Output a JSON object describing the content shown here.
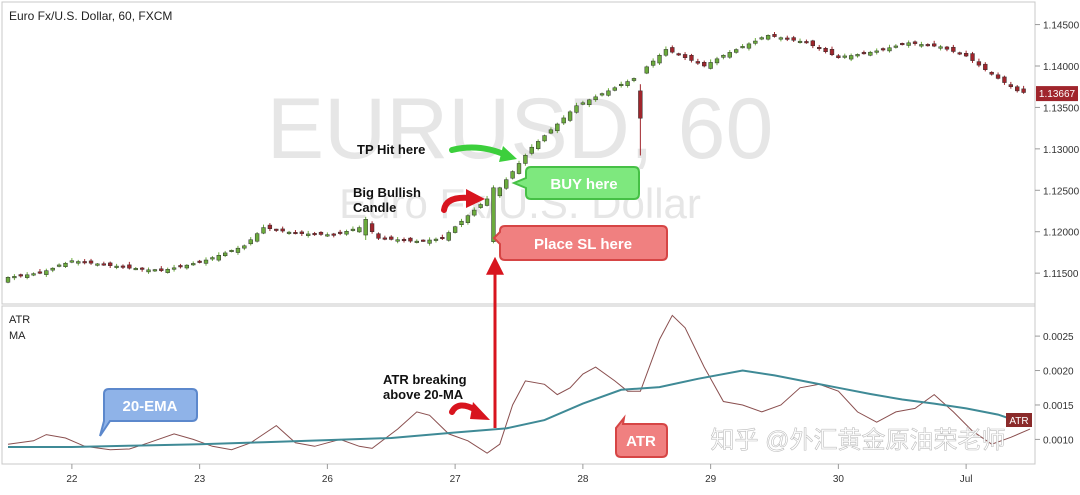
{
  "chart_data": [
    {
      "type": "candlestick",
      "title": "Euro Fx/U.S. Dollar, 60, FXCM",
      "watermark": {
        "line1": "EURUSD, 60",
        "line2": "Euro Fx/U.S. Dollar"
      },
      "ylim": [
        1.112,
        1.147
      ],
      "y_ticks": [
        "1.14500",
        "1.14000",
        "1.13500",
        "1.13000",
        "1.12500",
        "1.12000",
        "1.11500"
      ],
      "last_price": "1.13667",
      "last_price_value": 1.13667,
      "colors": {
        "bull": "#6bab3c",
        "bear": "#a0252c",
        "price_tag": "#a0252c",
        "watermark": "#e6e6e6"
      },
      "close_path": [
        [
          0,
          1.1145
        ],
        [
          5,
          1.115
        ],
        [
          10,
          1.1165
        ],
        [
          15,
          1.116
        ],
        [
          20,
          1.1155
        ],
        [
          24,
          1.1153
        ],
        [
          30,
          1.1163
        ],
        [
          37,
          1.1183
        ],
        [
          40,
          1.1205
        ],
        [
          45,
          1.1198
        ],
        [
          51,
          1.1196
        ],
        [
          55,
          1.1205
        ],
        [
          56,
          1.1208
        ],
        [
          58,
          1.1192
        ],
        [
          64,
          1.1188
        ],
        [
          68,
          1.1192
        ],
        [
          70,
          1.1206
        ],
        [
          77,
          1.1253
        ],
        [
          82,
          1.1302
        ],
        [
          86,
          1.133
        ],
        [
          89,
          1.1352
        ],
        [
          94,
          1.137
        ],
        [
          98,
          1.1385
        ],
        [
          103,
          1.142
        ],
        [
          109,
          1.14
        ],
        [
          112,
          1.1413
        ],
        [
          119,
          1.1437
        ],
        [
          125,
          1.1428
        ],
        [
          130,
          1.141
        ],
        [
          136,
          1.1418
        ],
        [
          141,
          1.1428
        ],
        [
          146,
          1.1423
        ],
        [
          150,
          1.1412
        ],
        [
          154,
          1.139
        ],
        [
          158,
          1.137
        ],
        [
          160,
          1.1366
        ]
      ],
      "event_candles": [
        {
          "index": 76,
          "open": 1.1188,
          "close": 1.1253,
          "high": 1.1256,
          "low": 1.1186
        },
        {
          "index": 99,
          "open": 1.137,
          "close": 1.1337,
          "high": 1.1378,
          "low": 1.1292
        },
        {
          "index": 56,
          "open": 1.1196,
          "close": 1.1215,
          "high": 1.1218,
          "low": 1.119
        }
      ],
      "annotations": [
        {
          "text": "TP Hit here",
          "type": "label",
          "arrow_color": "#3ccf3c"
        },
        {
          "text": "Big Bullish",
          "text2": "Candle",
          "type": "label",
          "arrow_color": "#d8141e"
        },
        {
          "text": "BUY here",
          "type": "callout",
          "fill": "#7ee87e",
          "stroke": "#46c046"
        },
        {
          "text": "Place SL here",
          "type": "callout",
          "fill": "#f08080",
          "stroke": "#d64545"
        }
      ]
    },
    {
      "type": "line",
      "panel_labels": [
        "ATR",
        "MA"
      ],
      "ylim": [
        0.00073,
        0.00285
      ],
      "y_ticks": [
        "0.0025",
        "0.0020",
        "0.0015",
        "0.0010"
      ],
      "x_ticks": [
        "22",
        "23",
        "26",
        "27",
        "28",
        "29",
        "30",
        "Jul"
      ],
      "x_tick_index": [
        10,
        30,
        50,
        70,
        90,
        110,
        130,
        150
      ],
      "n_points": 161,
      "series": [
        {
          "name": "ATR",
          "color": "#8a4f4f",
          "points": [
            [
              0,
              0.00093
            ],
            [
              4,
              0.00098
            ],
            [
              6,
              0.00107
            ],
            [
              9,
              0.00102
            ],
            [
              12,
              0.0009
            ],
            [
              16,
              0.00085
            ],
            [
              19,
              0.00086
            ],
            [
              22,
              0.00095
            ],
            [
              26,
              0.00108
            ],
            [
              29,
              0.001
            ],
            [
              32,
              0.0009
            ],
            [
              35,
              0.00085
            ],
            [
              38,
              0.00095
            ],
            [
              42,
              0.0012
            ],
            [
              45,
              0.00095
            ],
            [
              48,
              0.0009
            ],
            [
              52,
              0.001
            ],
            [
              55,
              0.0009
            ],
            [
              57,
              0.00087
            ],
            [
              61,
              0.00115
            ],
            [
              64,
              0.0014
            ],
            [
              66,
              0.00135
            ],
            [
              69,
              0.00108
            ],
            [
              72,
              0.00098
            ],
            [
              75,
              0.0008
            ],
            [
              77,
              0.00093
            ],
            [
              79,
              0.0015
            ],
            [
              81,
              0.00185
            ],
            [
              84,
              0.0018
            ],
            [
              86,
              0.00165
            ],
            [
              88,
              0.00175
            ],
            [
              90,
              0.00195
            ],
            [
              92,
              0.00205
            ],
            [
              95,
              0.00185
            ],
            [
              97,
              0.0017
            ],
            [
              99,
              0.0017
            ],
            [
              102,
              0.00245
            ],
            [
              104,
              0.0028
            ],
            [
              106,
              0.00262
            ],
            [
              109,
              0.00205
            ],
            [
              112,
              0.00155
            ],
            [
              115,
              0.0015
            ],
            [
              118,
              0.0014
            ],
            [
              121,
              0.0015
            ],
            [
              124,
              0.00175
            ],
            [
              127,
              0.0018
            ],
            [
              130,
              0.0017
            ],
            [
              133,
              0.0014
            ],
            [
              136,
              0.00125
            ],
            [
              139,
              0.0014
            ],
            [
              142,
              0.00145
            ],
            [
              145,
              0.00165
            ],
            [
              148,
              0.0014
            ],
            [
              151,
              0.00112
            ],
            [
              154,
              0.00093
            ],
            [
              157,
              0.00103
            ],
            [
              160,
              0.00115
            ]
          ]
        },
        {
          "name": "20-EMA",
          "color": "#3f8a96",
          "points": [
            [
              0,
              0.00089
            ],
            [
              10,
              0.00089
            ],
            [
              20,
              0.00091
            ],
            [
              30,
              0.00093
            ],
            [
              40,
              0.00096
            ],
            [
              50,
              0.00099
            ],
            [
              60,
              0.00102
            ],
            [
              70,
              0.0011
            ],
            [
              78,
              0.00116
            ],
            [
              84,
              0.00128
            ],
            [
              90,
              0.00152
            ],
            [
              96,
              0.00172
            ],
            [
              102,
              0.00176
            ],
            [
              108,
              0.00188
            ],
            [
              115,
              0.002
            ],
            [
              120,
              0.00193
            ],
            [
              125,
              0.00184
            ],
            [
              130,
              0.00175
            ],
            [
              135,
              0.00166
            ],
            [
              140,
              0.00158
            ],
            [
              145,
              0.00152
            ],
            [
              150,
              0.00145
            ],
            [
              155,
              0.00136
            ],
            [
              160,
              0.0012
            ]
          ]
        }
      ],
      "atr_tag": "ATR",
      "annotations": [
        {
          "text": "20-EMA",
          "type": "callout",
          "fill": "#8fb3e8",
          "stroke": "#5c88cc"
        },
        {
          "text": "ATR breaking",
          "text2": "above 20-MA",
          "type": "label",
          "arrow_color": "#d8141e"
        },
        {
          "text": "ATR",
          "type": "callout",
          "fill": "#f08080",
          "stroke": "#d64545"
        }
      ]
    }
  ],
  "overlay": {
    "watermark_text": "知乎 @外汇黄金原油荣老师"
  }
}
